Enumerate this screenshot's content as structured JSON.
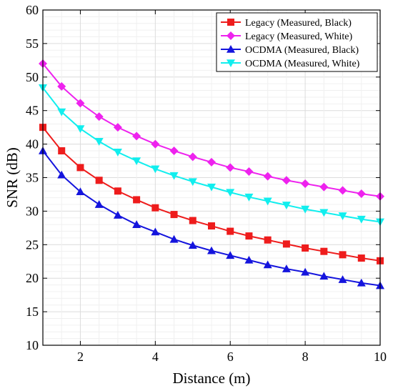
{
  "chart_data": {
    "type": "line",
    "title": "",
    "xlabel": "Distance (m)",
    "ylabel": "SNR (dB)",
    "xlim": [
      1,
      10
    ],
    "ylim": [
      10,
      60
    ],
    "xticks": [
      2,
      4,
      6,
      8,
      10
    ],
    "yticks": [
      10,
      15,
      20,
      25,
      30,
      35,
      40,
      45,
      50,
      55,
      60
    ],
    "grid": true,
    "legend_position": "top-right",
    "x": [
      1,
      1.5,
      2,
      2.5,
      3,
      3.5,
      4,
      4.5,
      5,
      5.5,
      6,
      6.5,
      7,
      7.5,
      8,
      8.5,
      9,
      9.5,
      10
    ],
    "series": [
      {
        "name": "Legacy (Measured, Black)",
        "color": "#ee1c1c",
        "marker": "square",
        "values": [
          42.5,
          39.0,
          36.5,
          34.6,
          33.0,
          31.7,
          30.5,
          29.5,
          28.6,
          27.8,
          27.0,
          26.3,
          25.7,
          25.1,
          24.5,
          24.0,
          23.5,
          23.0,
          22.6
        ]
      },
      {
        "name": "Legacy (Measured, White)",
        "color": "#ee22ee",
        "marker": "diamond",
        "values": [
          52.0,
          48.6,
          46.1,
          44.1,
          42.5,
          41.2,
          40.0,
          39.0,
          38.1,
          37.3,
          36.5,
          35.9,
          35.2,
          34.6,
          34.1,
          33.6,
          33.1,
          32.6,
          32.2
        ]
      },
      {
        "name": "OCDMA (Measured, Black)",
        "color": "#1414dd",
        "marker": "triangle-up",
        "values": [
          39.0,
          35.4,
          32.9,
          31.0,
          29.4,
          28.0,
          26.9,
          25.8,
          24.9,
          24.1,
          23.4,
          22.7,
          22.0,
          21.4,
          20.9,
          20.3,
          19.8,
          19.3,
          18.9
        ]
      },
      {
        "name": "OCDMA (Measured, White)",
        "color": "#11eeee",
        "marker": "triangle-down",
        "values": [
          48.4,
          44.8,
          42.3,
          40.4,
          38.8,
          37.5,
          36.3,
          35.3,
          34.4,
          33.6,
          32.8,
          32.1,
          31.5,
          30.9,
          30.3,
          29.8,
          29.3,
          28.8,
          28.4
        ]
      }
    ]
  }
}
